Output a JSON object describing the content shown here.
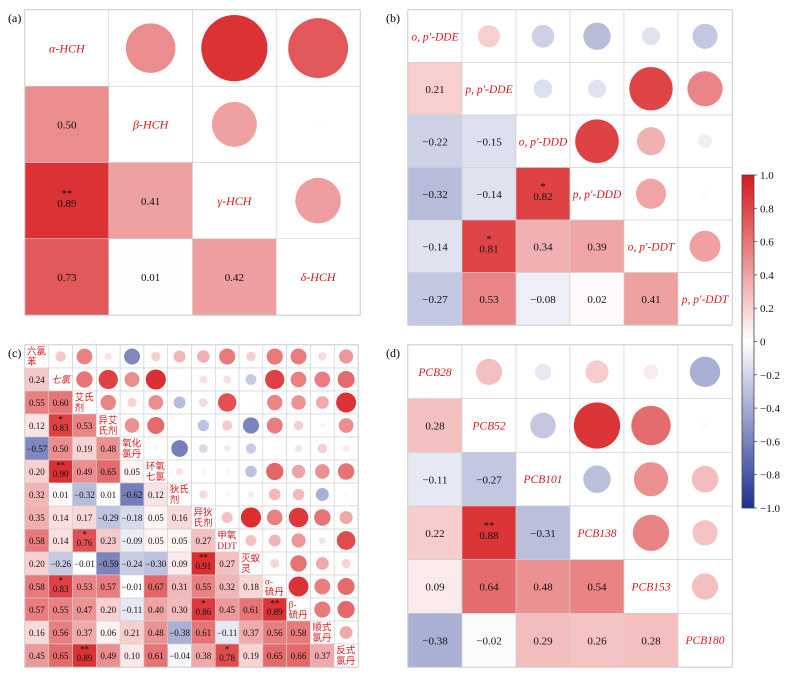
{
  "chart_data": [
    {
      "type": "heatmap",
      "panel": "(a)",
      "variables": [
        "α-HCH",
        "β-HCH",
        "γ-HCH",
        "δ-HCH"
      ],
      "values": [
        [
          0.5
        ],
        [
          0.89,
          0.41
        ],
        [
          0.73,
          0.01,
          0.42
        ]
      ],
      "stars": [
        [
          ""
        ],
        [
          "**",
          ""
        ],
        [
          "",
          "",
          ""
        ]
      ],
      "scale": [
        -1,
        1
      ]
    },
    {
      "type": "heatmap",
      "panel": "(b)",
      "variables": [
        "o, p′-DDE",
        "p, p′-DDE",
        "o, p′-DDD",
        "p, p′-DDD",
        "o, p′-DDT",
        "p, p′-DDT"
      ],
      "values": [
        [
          0.21
        ],
        [
          -0.22,
          -0.15
        ],
        [
          -0.32,
          -0.14,
          0.82
        ],
        [
          -0.14,
          0.81,
          0.34,
          0.39
        ],
        [
          -0.27,
          0.53,
          -0.08,
          0.02,
          0.41
        ]
      ],
      "stars": [
        [
          ""
        ],
        [
          "",
          ""
        ],
        [
          "",
          "",
          "*"
        ],
        [
          "",
          "*",
          "",
          ""
        ],
        [
          "",
          "",
          "",
          "",
          ""
        ]
      ],
      "scale": [
        -1,
        1
      ]
    },
    {
      "type": "heatmap",
      "panel": "(c)",
      "variables": [
        "六氯苯",
        "七氯",
        "艾氏剂",
        "异艾氏剂",
        "氧化氯丹",
        "环氧七氯",
        "狄氏剂",
        "异狄氏剂",
        "甲氧DDT",
        "灭蚁灵",
        "α-硫丹",
        "β-硫丹",
        "顺式氯丹",
        "反式氯丹"
      ],
      "values": [
        [
          0.24
        ],
        [
          0.55,
          0.6
        ],
        [
          0.12,
          0.83,
          0.53
        ],
        [
          -0.57,
          0.5,
          0.19,
          0.48
        ],
        [
          0.2,
          0.9,
          0.49,
          0.65,
          0.05
        ],
        [
          0.32,
          0.01,
          -0.32,
          0.01,
          -0.62,
          0.12
        ],
        [
          0.35,
          0.14,
          0.17,
          -0.29,
          -0.18,
          0.05,
          0.16
        ],
        [
          0.58,
          0.14,
          0.76,
          0.23,
          -0.09,
          0.05,
          0.05,
          0.27
        ],
        [
          0.2,
          -0.26,
          -0.01,
          -0.59,
          -0.24,
          -0.3,
          0.09,
          0.91,
          0.27
        ],
        [
          0.58,
          0.83,
          0.53,
          0.57,
          -0.01,
          0.67,
          0.31,
          0.55,
          0.32,
          0.18
        ],
        [
          0.57,
          0.55,
          0.47,
          0.2,
          -0.11,
          0.4,
          0.3,
          0.86,
          0.45,
          0.61,
          0.89
        ],
        [
          0.16,
          0.56,
          0.37,
          0.06,
          0.21,
          0.48,
          -0.38,
          0.61,
          -0.11,
          0.37,
          0.56,
          0.58
        ],
        [
          0.45,
          0.65,
          0.89,
          0.49,
          0.1,
          0.61,
          -0.04,
          0.38,
          0.78,
          0.19,
          0.65,
          0.66,
          0.37
        ]
      ],
      "stars": [
        [
          ""
        ],
        [
          "",
          ""
        ],
        [
          "",
          "*",
          ""
        ],
        [
          "",
          "",
          "",
          ""
        ],
        [
          "",
          "**",
          "",
          "",
          ""
        ],
        [
          "",
          "",
          "",
          "",
          "",
          ""
        ],
        [
          "",
          "",
          "",
          "",
          "",
          "",
          ""
        ],
        [
          "",
          "",
          "*",
          "",
          "",
          "",
          "",
          ""
        ],
        [
          "",
          "",
          "",
          "",
          "",
          "",
          "",
          "**",
          ""
        ],
        [
          "",
          "*",
          "",
          "",
          "",
          "",
          "",
          "",
          "",
          ""
        ],
        [
          "",
          "",
          "",
          "",
          "",
          "",
          "",
          "*",
          "",
          "",
          "**"
        ],
        [
          "",
          "",
          "",
          "",
          "",
          "",
          "",
          "",
          "",
          "",
          "",
          ""
        ],
        [
          "",
          "",
          "**",
          "",
          "",
          "",
          "",
          "",
          "*",
          "",
          "",
          "",
          ""
        ]
      ],
      "scale": [
        -1,
        1
      ]
    },
    {
      "type": "heatmap",
      "panel": "(d)",
      "variables": [
        "PCB28",
        "PCB52",
        "PCB101",
        "PCB138",
        "PCB153",
        "PCB180"
      ],
      "values": [
        [
          0.28
        ],
        [
          -0.11,
          -0.27
        ],
        [
          0.22,
          0.88,
          -0.31
        ],
        [
          0.09,
          0.64,
          0.48,
          0.54
        ],
        [
          -0.38,
          -0.02,
          0.29,
          0.26,
          0.28
        ]
      ],
      "stars": [
        [
          ""
        ],
        [
          "",
          ""
        ],
        [
          "",
          "**",
          ""
        ],
        [
          "",
          "",
          "",
          ""
        ],
        [
          "",
          "",
          "",
          "",
          ""
        ]
      ],
      "scale": [
        -1,
        1
      ]
    }
  ],
  "colorbar": {
    "ticks": [
      "1.0",
      "0.8",
      "0.6",
      "0.4",
      "0.2",
      "0",
      "−0.2",
      "−0.4",
      "−0.6",
      "−0.8",
      "−1.0"
    ],
    "colors": {
      "high": "#d7191c",
      "mid": "#ffffff",
      "low": "#1f2f8f"
    }
  }
}
